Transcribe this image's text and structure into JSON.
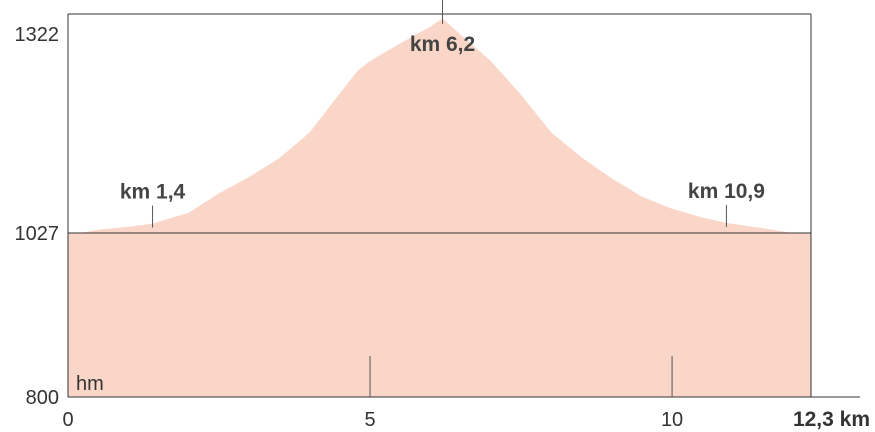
{
  "chart_data": {
    "type": "area",
    "title": "",
    "xlabel": "",
    "ylabel": "",
    "x_unit": "km",
    "y_unit": "hm",
    "xlim": [
      0,
      12.3
    ],
    "ylim": [
      800,
      1340
    ],
    "y_ticks": [
      {
        "value": 800,
        "label": "800"
      },
      {
        "value": 1027,
        "label": "1027"
      },
      {
        "value": 1322,
        "label": "1322"
      }
    ],
    "x_ticks": [
      {
        "value": 0,
        "label": "0"
      },
      {
        "value": 5,
        "label": "5"
      },
      {
        "value": 10,
        "label": "10"
      }
    ],
    "x_end_label": "12,3 km",
    "y_unit_label": "hm",
    "baseline": 1027,
    "x": [
      0.2,
      0.5,
      1.0,
      1.4,
      2.0,
      2.5,
      3.0,
      3.5,
      4.0,
      4.5,
      4.8,
      5.0,
      5.5,
      6.0,
      6.2,
      6.5,
      7.0,
      7.5,
      8.0,
      8.5,
      9.0,
      9.5,
      10.0,
      10.5,
      10.9,
      11.5,
      12.0,
      12.3
    ],
    "elevation": [
      1027,
      1032,
      1036,
      1041,
      1057,
      1086,
      1110,
      1138,
      1176,
      1234,
      1268,
      1282,
      1308,
      1333,
      1345,
      1321,
      1282,
      1232,
      1176,
      1139,
      1108,
      1081,
      1063,
      1050,
      1042,
      1034,
      1027,
      1027
    ],
    "annotations": [
      {
        "label": "km 1,4",
        "x": 1.4,
        "y": 1041
      },
      {
        "label": "km 6,2",
        "x": 6.2,
        "y": 1345
      },
      {
        "label": "km 10,9",
        "x": 10.9,
        "y": 1042
      }
    ],
    "grid": false,
    "legend": "none"
  },
  "colors": {
    "fill": "#f9d6c8",
    "axis": "#333333",
    "marker": "#555555"
  }
}
